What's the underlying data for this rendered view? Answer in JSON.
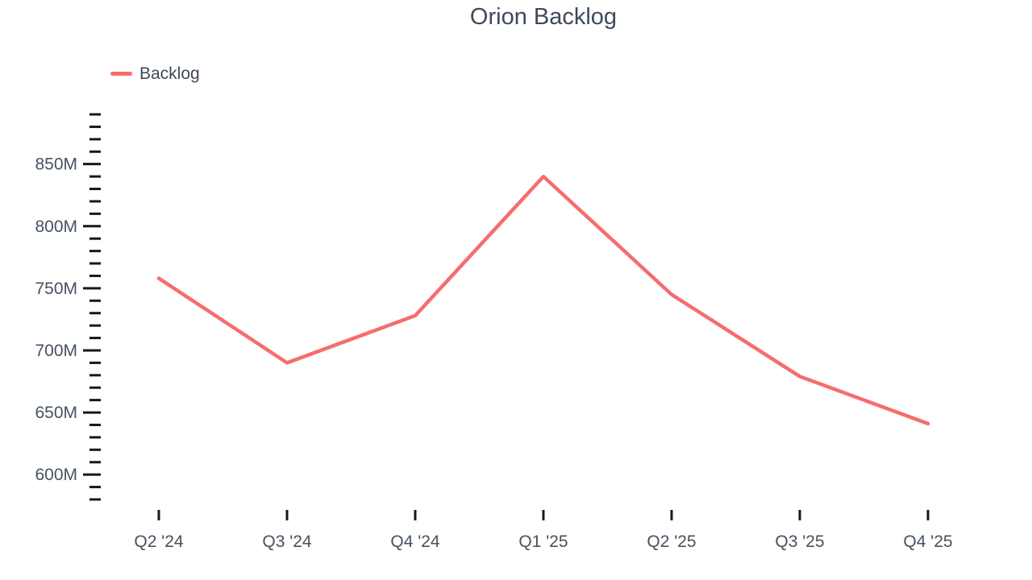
{
  "title": "Orion Backlog",
  "colors": {
    "line": "#f66d6d",
    "title_text": "#3e4a59",
    "axis_label": "#465260",
    "tick": "#16181d",
    "background": "#ffffff"
  },
  "legend": {
    "position": "top-left",
    "items": [
      {
        "label": "Backlog",
        "color": "#f66d6d"
      }
    ]
  },
  "chart_data": {
    "type": "line",
    "title": "Orion Backlog",
    "categories": [
      "Q2 '24",
      "Q3 '24",
      "Q4 '24",
      "Q1 '25",
      "Q2 '25",
      "Q3 '25",
      "Q4 '25"
    ],
    "series": [
      {
        "name": "Backlog",
        "color": "#f66d6d",
        "values": [
          758,
          690,
          728,
          840,
          745,
          679,
          641
        ]
      }
    ],
    "unit": "M",
    "xlabel": "",
    "ylabel": "",
    "ylim": [
      580,
      890
    ],
    "y_minor_step": 10,
    "y_labeled_ticks": [
      600,
      650,
      700,
      750,
      800,
      850
    ],
    "grid": false,
    "legend_position": "top-left"
  }
}
